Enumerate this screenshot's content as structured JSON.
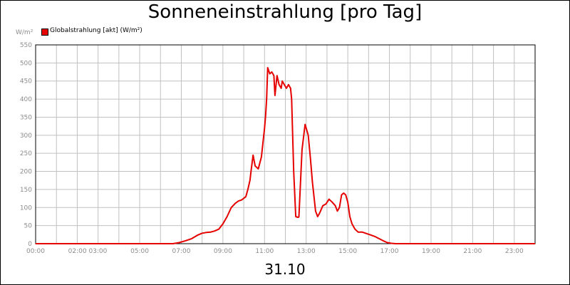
{
  "chart_data": {
    "type": "line",
    "title": "Sonneneinstrahlung [pro Tag]",
    "unit_label": "W/m²",
    "date_label": "31.10",
    "xlabel": "",
    "ylabel": "",
    "x_tick_labels": [
      "00:00",
      "02:00 03:00",
      "05:00",
      "07:00",
      "09:00",
      "11:00",
      "13:00",
      "15:00",
      "17:00",
      "19:00",
      "21:00",
      "23:00"
    ],
    "x_tick_hours": [
      0,
      2.5,
      5,
      7,
      9,
      11,
      13,
      15,
      17,
      19,
      21,
      23
    ],
    "xlim": [
      0,
      24
    ],
    "ylim": [
      0,
      550
    ],
    "y_ticks": [
      0,
      50,
      100,
      150,
      200,
      250,
      300,
      350,
      400,
      450,
      500,
      550
    ],
    "grid": true,
    "legend_position": "top-left",
    "colors": {
      "series": "#e60000",
      "grid": "#c0c0c0",
      "axis": "#000000",
      "tick_text": "#8c8c8c"
    },
    "series": [
      {
        "name": "Globalstrahlung [akt] (W/m²)",
        "x": [
          0,
          6.6,
          6.9,
          7.2,
          7.5,
          7.8,
          8.0,
          8.2,
          8.4,
          8.6,
          8.8,
          9.0,
          9.2,
          9.4,
          9.6,
          9.75,
          9.9,
          10.1,
          10.2,
          10.3,
          10.35,
          10.45,
          10.55,
          10.7,
          10.85,
          11.0,
          11.05,
          11.1,
          11.15,
          11.25,
          11.35,
          11.45,
          11.5,
          11.6,
          11.7,
          11.8,
          11.85,
          11.95,
          12.05,
          12.15,
          12.25,
          12.3,
          12.4,
          12.5,
          12.6,
          12.65,
          12.8,
          12.95,
          13.0,
          13.1,
          13.2,
          13.3,
          13.45,
          13.55,
          13.65,
          13.8,
          13.95,
          14.1,
          14.25,
          14.4,
          14.5,
          14.6,
          14.7,
          14.8,
          14.9,
          15.0,
          15.1,
          15.2,
          15.35,
          15.5,
          15.7,
          15.9,
          16.1,
          16.3,
          16.5,
          16.7,
          16.9,
          17.1,
          17.3,
          17.5,
          17.7,
          24
        ],
        "values": [
          0,
          0,
          3,
          8,
          14,
          24,
          29,
          31,
          32,
          35,
          40,
          55,
          75,
          100,
          112,
          118,
          121,
          130,
          150,
          175,
          200,
          245,
          215,
          207,
          240,
          320,
          355,
          400,
          487,
          470,
          475,
          465,
          410,
          465,
          440,
          430,
          450,
          440,
          430,
          440,
          430,
          400,
          200,
          75,
          73,
          74,
          260,
          330,
          320,
          300,
          240,
          170,
          90,
          75,
          85,
          105,
          110,
          123,
          115,
          105,
          90,
          100,
          135,
          140,
          135,
          115,
          75,
          55,
          40,
          32,
          32,
          28,
          24,
          20,
          14,
          8,
          3,
          1,
          0,
          0,
          0,
          0
        ]
      }
    ]
  }
}
